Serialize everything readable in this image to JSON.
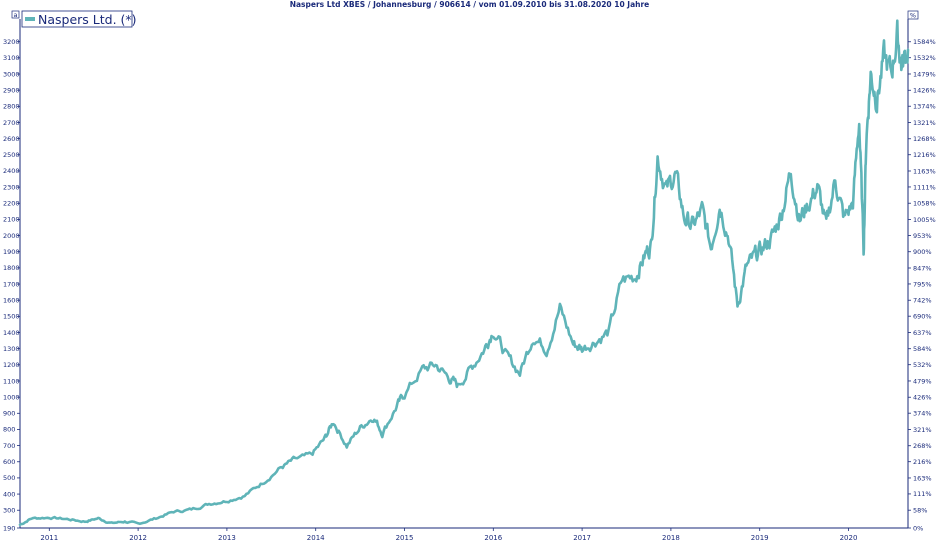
{
  "chart_data": {
    "type": "line",
    "title": "Naspers Ltd XBES / Johannesburg / 906614 / vom 01.09.2010 bis 31.08.2020 10 Jahre",
    "left_axis_tab": "a",
    "right_axis_unit": "%",
    "legend": [
      "Naspers Ltd. (*)"
    ],
    "legend_position": "top-left",
    "grid": false,
    "series_color": "#5fb4b8",
    "axis_color": "#1a2a7a",
    "ylim": [
      190,
      3260
    ],
    "y_ticks": [
      190,
      300,
      400,
      500,
      600,
      700,
      800,
      900,
      1000,
      1100,
      1200,
      1300,
      1400,
      1500,
      1600,
      1700,
      1800,
      1900,
      2000,
      2100,
      2200,
      2300,
      2400,
      2500,
      2600,
      2700,
      2800,
      2900,
      3000,
      3100,
      3200
    ],
    "y_tick_labels": [
      "190",
      "300",
      "400",
      "500",
      "600",
      "700",
      "800",
      "900",
      "1000",
      "1100",
      "1200",
      "1300",
      "1400",
      "1500",
      "1600",
      "1700",
      "1800",
      "1900",
      "2000",
      "2100",
      "2200",
      "2300",
      "2400",
      "2500",
      "2600",
      "2700",
      "2800",
      "2900",
      "3000",
      "3100",
      "3200"
    ],
    "y2_ticks": [
      0,
      58,
      111,
      163,
      216,
      268,
      321,
      374,
      426,
      479,
      532,
      584,
      637,
      690,
      742,
      795,
      847,
      900,
      953,
      1005,
      1058,
      1111,
      1163,
      1216,
      1268,
      1321,
      1374,
      1426,
      1479,
      1532,
      1584
    ],
    "y2_tick_labels": [
      "0%",
      "58%",
      "111%",
      "163%",
      "216%",
      "268%",
      "321%",
      "374%",
      "426%",
      "479%",
      "532%",
      "584%",
      "637%",
      "690%",
      "742%",
      "795%",
      "847%",
      "900%",
      "953%",
      "1005%",
      "1058%",
      "1111%",
      "1163%",
      "1216%",
      "1268%",
      "1321%",
      "1374%",
      "1426%",
      "1479%",
      "1532%",
      "1584%"
    ],
    "xlim": [
      2010.67,
      2020.67
    ],
    "x_ticks": [
      2011,
      2012,
      2013,
      2014,
      2015,
      2016,
      2017,
      2018,
      2019,
      2020
    ],
    "x_tick_labels": [
      "2011",
      "2012",
      "2013",
      "2014",
      "2015",
      "2016",
      "2017",
      "2018",
      "2019",
      "2020"
    ],
    "series": [
      {
        "name": "Naspers Ltd. (*)",
        "x": [
          2010.67,
          2010.8,
          2011.0,
          2011.2,
          2011.4,
          2011.55,
          2011.7,
          2011.85,
          2012.0,
          2012.2,
          2012.4,
          2012.6,
          2012.8,
          2013.0,
          2013.2,
          2013.4,
          2013.6,
          2013.75,
          2013.95,
          2014.1,
          2014.2,
          2014.35,
          2014.5,
          2014.65,
          2014.75,
          2014.9,
          2015.0,
          2015.2,
          2015.35,
          2015.5,
          2015.6,
          2015.75,
          2015.9,
          2016.0,
          2016.15,
          2016.3,
          2016.45,
          2016.6,
          2016.75,
          2016.9,
          2017.0,
          2017.15,
          2017.3,
          2017.45,
          2017.6,
          2017.7,
          2017.78,
          2017.85,
          2017.95,
          2018.05,
          2018.15,
          2018.25,
          2018.35,
          2018.45,
          2018.55,
          2018.65,
          2018.75,
          2018.85,
          2018.95,
          2019.05,
          2019.15,
          2019.25,
          2019.35,
          2019.45,
          2019.55,
          2019.65,
          2019.75,
          2019.85,
          2019.95,
          2020.05,
          2020.12,
          2020.17,
          2020.2,
          2020.25,
          2020.32,
          2020.4,
          2020.48,
          2020.55,
          2020.6,
          2020.67
        ],
        "values": [
          210,
          250,
          255,
          245,
          230,
          250,
          220,
          230,
          215,
          250,
          290,
          305,
          340,
          360,
          390,
          470,
          560,
          610,
          640,
          740,
          850,
          700,
          810,
          880,
          780,
          930,
          1020,
          1170,
          1200,
          1120,
          1070,
          1180,
          1300,
          1420,
          1250,
          1150,
          1380,
          1300,
          1550,
          1330,
          1300,
          1350,
          1400,
          1720,
          1750,
          1870,
          1950,
          2500,
          2280,
          2380,
          2110,
          2060,
          2150,
          1930,
          2200,
          2000,
          1570,
          1800,
          1870,
          1930,
          2000,
          2150,
          2400,
          2100,
          2200,
          2300,
          2050,
          2350,
          2100,
          2200,
          2720,
          1910,
          2600,
          3000,
          2850,
          3100,
          3000,
          3240,
          3050,
          3150
        ]
      }
    ]
  }
}
